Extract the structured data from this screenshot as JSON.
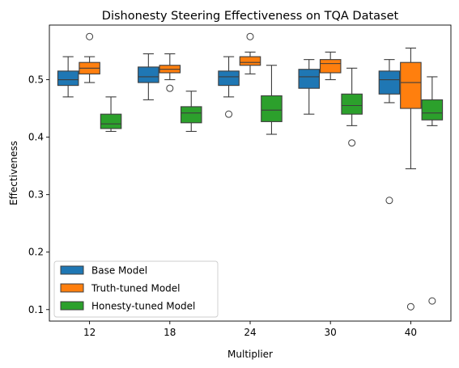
{
  "chart_data": {
    "type": "box",
    "title": "Dishonesty Steering Effectiveness on TQA Dataset",
    "xlabel": "Multiplier",
    "ylabel": "Effectiveness",
    "categories": [
      "12",
      "18",
      "24",
      "30",
      "40"
    ],
    "ylim": [
      0.08,
      0.595
    ],
    "yticks": [
      "0.1",
      "0.2",
      "0.3",
      "0.4",
      "0.5"
    ],
    "legend_position": "lower-left",
    "series": [
      {
        "name": "Base Model",
        "color": "#1f77b4",
        "boxes": [
          {
            "whislo": 0.47,
            "q1": 0.49,
            "med": 0.5,
            "q3": 0.515,
            "whishi": 0.54,
            "fliers": []
          },
          {
            "whislo": 0.465,
            "q1": 0.495,
            "med": 0.505,
            "q3": 0.522,
            "whishi": 0.545,
            "fliers": []
          },
          {
            "whislo": 0.47,
            "q1": 0.49,
            "med": 0.505,
            "q3": 0.515,
            "whishi": 0.54,
            "fliers": [
              0.44
            ]
          },
          {
            "whislo": 0.44,
            "q1": 0.485,
            "med": 0.505,
            "q3": 0.518,
            "whishi": 0.535,
            "fliers": []
          },
          {
            "whislo": 0.46,
            "q1": 0.475,
            "med": 0.5,
            "q3": 0.515,
            "whishi": 0.535,
            "fliers": [
              0.29
            ]
          }
        ]
      },
      {
        "name": "Truth-tuned Model",
        "color": "#ff7f0e",
        "boxes": [
          {
            "whislo": 0.495,
            "q1": 0.51,
            "med": 0.52,
            "q3": 0.53,
            "whishi": 0.54,
            "fliers": [
              0.575
            ]
          },
          {
            "whislo": 0.5,
            "q1": 0.512,
            "med": 0.518,
            "q3": 0.525,
            "whishi": 0.545,
            "fliers": [
              0.485
            ]
          },
          {
            "whislo": 0.51,
            "q1": 0.525,
            "med": 0.53,
            "q3": 0.54,
            "whishi": 0.548,
            "fliers": [
              0.575
            ]
          },
          {
            "whislo": 0.5,
            "q1": 0.512,
            "med": 0.528,
            "q3": 0.535,
            "whishi": 0.548,
            "fliers": []
          },
          {
            "whislo": 0.345,
            "q1": 0.45,
            "med": 0.495,
            "q3": 0.53,
            "whishi": 0.555,
            "fliers": [
              0.105
            ]
          }
        ]
      },
      {
        "name": "Honesty-tuned Model",
        "color": "#2ca02c",
        "boxes": [
          {
            "whislo": 0.41,
            "q1": 0.415,
            "med": 0.423,
            "q3": 0.44,
            "whishi": 0.47,
            "fliers": []
          },
          {
            "whislo": 0.41,
            "q1": 0.425,
            "med": 0.442,
            "q3": 0.453,
            "whishi": 0.48,
            "fliers": []
          },
          {
            "whislo": 0.405,
            "q1": 0.427,
            "med": 0.447,
            "q3": 0.472,
            "whishi": 0.525,
            "fliers": []
          },
          {
            "whislo": 0.42,
            "q1": 0.44,
            "med": 0.455,
            "q3": 0.475,
            "whishi": 0.52,
            "fliers": [
              0.39
            ]
          },
          {
            "whislo": 0.42,
            "q1": 0.43,
            "med": 0.442,
            "q3": 0.465,
            "whishi": 0.505,
            "fliers": [
              0.115
            ]
          }
        ]
      }
    ]
  }
}
